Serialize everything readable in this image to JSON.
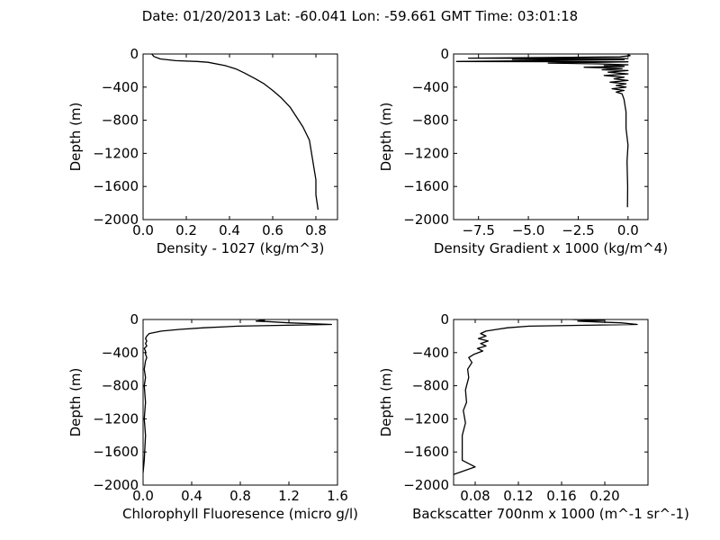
{
  "title": "Date: 01/20/2013  Lat:  -60.041 Lon:  -59.661  GMT Time: 03:01:18",
  "chart_data": [
    {
      "type": "line",
      "xlabel": "Density - 1027 (kg/m^3)",
      "ylabel": "Depth (m)",
      "xlim": [
        0.0,
        0.9
      ],
      "ylim": [
        -2000,
        0
      ],
      "xticks": [
        0.0,
        0.2,
        0.4,
        0.6,
        0.8
      ],
      "xtick_labels": [
        "0.0",
        "0.2",
        "0.4",
        "0.6",
        "0.8"
      ],
      "yticks": [
        0,
        -400,
        -800,
        -1200,
        -1600,
        -2000
      ],
      "ytick_labels": [
        "0",
        "−400",
        "−800",
        "−1200",
        "−1600",
        "−2000"
      ],
      "grid": false,
      "series": [
        {
          "x": [
            0.04,
            0.05,
            0.08,
            0.15,
            0.25,
            0.3,
            0.38,
            0.43,
            0.47,
            0.52,
            0.56,
            0.6,
            0.64,
            0.68,
            0.71,
            0.74,
            0.77,
            0.78,
            0.79,
            0.8,
            0.8,
            0.81
          ],
          "y": [
            0,
            -30,
            -60,
            -80,
            -90,
            -100,
            -140,
            -180,
            -230,
            -300,
            -360,
            -440,
            -530,
            -640,
            -760,
            -880,
            -1040,
            -1200,
            -1360,
            -1520,
            -1700,
            -1880
          ]
        }
      ]
    },
    {
      "type": "line",
      "xlabel": "Density Gradient x 1000 (kg/m^4)",
      "ylabel": "Depth (m)",
      "xlim": [
        -8.75,
        1.0
      ],
      "ylim": [
        -2000,
        0
      ],
      "xticks": [
        -7.5,
        -5.0,
        -2.5,
        0.0
      ],
      "xtick_labels": [
        "−7.5",
        "−5.0",
        "−2.5",
        "0.0"
      ],
      "yticks": [
        0,
        -400,
        -800,
        -1200,
        -1600,
        -2000
      ],
      "ytick_labels": [
        "0",
        "−400",
        "−800",
        "−1200",
        "−1600",
        "−2000"
      ],
      "grid": false,
      "series": [
        {
          "x": [
            0.0,
            0.1,
            -0.4,
            -8.0,
            0.0,
            -5.8,
            -0.2,
            -8.6,
            0.0,
            -4.0,
            -1.5,
            0.0,
            -1.2,
            -0.2,
            -2.2,
            -0.3,
            -1.3,
            0.0,
            -1.0,
            0.0,
            -1.2,
            -0.2,
            -0.7,
            0.0,
            -0.9,
            -0.1,
            -0.6,
            -0.1,
            -0.8,
            -0.2,
            -0.6,
            -0.3,
            -0.2,
            -0.1,
            -0.1,
            0.0,
            -0.05,
            -0.02,
            -0.03
          ],
          "y": [
            -5,
            -20,
            -35,
            -50,
            -55,
            -65,
            -70,
            -90,
            -95,
            -110,
            -120,
            -130,
            -140,
            -150,
            -160,
            -175,
            -190,
            -200,
            -220,
            -240,
            -260,
            -280,
            -300,
            -320,
            -340,
            -360,
            -380,
            -400,
            -420,
            -440,
            -460,
            -480,
            -550,
            -700,
            -900,
            -1100,
            -1300,
            -1600,
            -1850
          ]
        }
      ]
    },
    {
      "type": "line",
      "xlabel": "Chlorophyll Fluoresence (micro g/l)",
      "ylabel": "Depth (m)",
      "xlim": [
        0.0,
        1.6
      ],
      "ylim": [
        -2000,
        0
      ],
      "xticks": [
        0.0,
        0.4,
        0.8,
        1.2,
        1.6
      ],
      "xtick_labels": [
        "0.0",
        "0.4",
        "0.8",
        "1.2",
        "1.6"
      ],
      "yticks": [
        0,
        -400,
        -800,
        -1200,
        -1600,
        -2000
      ],
      "ytick_labels": [
        "0",
        "−400",
        "−800",
        "−1200",
        "−1600",
        "−2000"
      ],
      "grid": false,
      "series": [
        {
          "x": [
            0.95,
            1.0,
            0.93,
            1.02,
            1.2,
            1.55,
            0.78,
            0.5,
            0.3,
            0.15,
            0.05,
            0.03,
            0.02,
            0.03,
            0.02,
            0.03,
            0.01,
            0.02,
            0.02,
            0.03,
            0.02,
            0.01,
            0.02,
            0.01,
            0.02,
            0.01,
            0.02,
            0.01,
            0.0
          ],
          "y": [
            0,
            -10,
            -20,
            -25,
            -40,
            -60,
            -80,
            -100,
            -120,
            -140,
            -170,
            -200,
            -230,
            -260,
            -290,
            -320,
            -350,
            -380,
            -420,
            -460,
            -500,
            -600,
            -700,
            -800,
            -1000,
            -1200,
            -1400,
            -1700,
            -1850
          ]
        }
      ]
    },
    {
      "type": "line",
      "xlabel": "Backscatter 700nm x 1000 (m^-1 sr^-1)",
      "ylabel": "Depth (m)",
      "xlim": [
        0.06,
        0.24
      ],
      "ylim": [
        -2000,
        0
      ],
      "xticks": [
        0.08,
        0.12,
        0.16,
        0.2
      ],
      "xtick_labels": [
        "0.08",
        "0.12",
        "0.16",
        "0.20"
      ],
      "yticks": [
        0,
        -400,
        -800,
        -1200,
        -1600,
        -2000
      ],
      "ytick_labels": [
        "0",
        "−400",
        "−800",
        "−1200",
        "−1600",
        "−2000"
      ],
      "grid": false,
      "series": [
        {
          "x": [
            0.17,
            0.2,
            0.175,
            0.195,
            0.215,
            0.23,
            0.13,
            0.11,
            0.1,
            0.09,
            0.085,
            0.09,
            0.083,
            0.092,
            0.085,
            0.09,
            0.082,
            0.087,
            0.079,
            0.074,
            0.077,
            0.073,
            0.074,
            0.071,
            0.072,
            0.069,
            0.071,
            0.068,
            0.068,
            0.08,
            0.058
          ],
          "y": [
            0,
            -10,
            -20,
            -30,
            -40,
            -60,
            -80,
            -100,
            -120,
            -140,
            -170,
            -200,
            -230,
            -260,
            -290,
            -320,
            -350,
            -380,
            -420,
            -460,
            -520,
            -600,
            -700,
            -850,
            -1000,
            -1100,
            -1250,
            -1400,
            -1700,
            -1780,
            -1880
          ]
        }
      ]
    }
  ]
}
